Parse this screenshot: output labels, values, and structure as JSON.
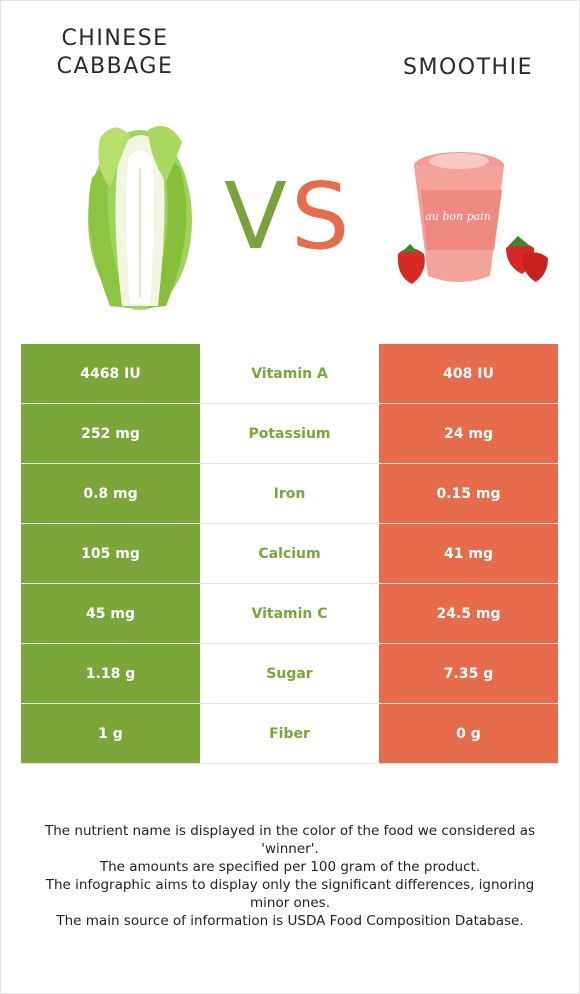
{
  "left_food": {
    "name": "Chinese cabbage",
    "color": "#7ba63a"
  },
  "right_food": {
    "name": "Smoothie",
    "color": "#e66c4b"
  },
  "vs": {
    "v": "V",
    "s": "S"
  },
  "cup_label": "au bon pain",
  "rows": [
    {
      "nutrient": "Vitamin A",
      "left": "4468 IU",
      "right": "408 IU"
    },
    {
      "nutrient": "Potassium",
      "left": "252 mg",
      "right": "24 mg"
    },
    {
      "nutrient": "Iron",
      "left": "0.8 mg",
      "right": "0.15 mg"
    },
    {
      "nutrient": "Calcium",
      "left": "105 mg",
      "right": "41 mg"
    },
    {
      "nutrient": "Vitamin C",
      "left": "45 mg",
      "right": "24.5 mg"
    },
    {
      "nutrient": "Sugar",
      "left": "1.18 g",
      "right": "7.35 g"
    },
    {
      "nutrient": "Fiber",
      "left": "1 g",
      "right": "0 g"
    }
  ],
  "footnotes": [
    "The nutrient name is displayed in the color of the food we considered as 'winner'.",
    "The amounts are specified per 100 gram of the product.",
    "The infographic aims to display only the significant differences, ignoring minor ones.",
    "The main source of information is USDA Food Composition Database."
  ]
}
